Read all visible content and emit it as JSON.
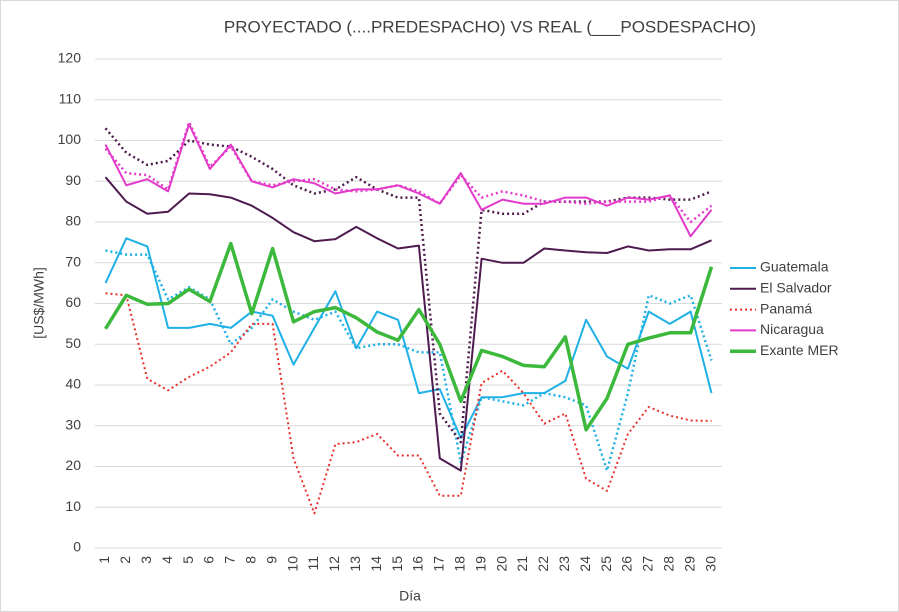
{
  "chart_data": {
    "type": "line",
    "title": "PROYECTADO (....PREDESPACHO) VS REAL (___POSDESPACHO)",
    "x_label": "Día",
    "y_label": "[US$/MWh]",
    "categories": [
      "1",
      "2",
      "3",
      "4",
      "5",
      "6",
      "7",
      "8",
      "9",
      "10",
      "11",
      "12",
      "13",
      "14",
      "15",
      "16",
      "17",
      "18",
      "19",
      "20",
      "21",
      "22",
      "23",
      "24",
      "25",
      "26",
      "27",
      "28",
      "29",
      "30"
    ],
    "ylim": [
      0,
      120
    ],
    "yticks": [
      0,
      10,
      20,
      30,
      40,
      50,
      60,
      70,
      80,
      90,
      100,
      110,
      120
    ],
    "grid": true,
    "legend": "right",
    "series": [
      {
        "name": "Guatemala",
        "color": "#1fb0e6",
        "values": [
          65,
          76,
          74,
          54,
          54,
          55,
          54,
          58,
          57,
          45,
          54,
          63,
          49,
          58,
          56,
          38,
          39,
          27,
          37,
          37,
          38,
          38,
          41,
          56,
          47,
          44,
          58,
          55,
          58,
          38
        ],
        "projected_values": [
          73,
          72,
          72,
          61,
          64,
          61,
          50,
          54,
          61,
          58,
          56,
          58,
          49,
          50,
          50,
          48,
          48,
          21,
          37,
          36,
          35,
          38,
          37,
          35,
          19,
          38,
          62,
          60,
          62,
          46
        ]
      },
      {
        "name": "El Salvador",
        "color": "#4e1a4f",
        "values": [
          91,
          85,
          82,
          82.5,
          87,
          86.8,
          86,
          84,
          81,
          77.5,
          75.3,
          75.8,
          78.8,
          76,
          73.5,
          74.2,
          22,
          19,
          71,
          70,
          70,
          73.5,
          73,
          72.6,
          72.4,
          74,
          73,
          73.3,
          73.3,
          75.5
        ],
        "projected_values": [
          103,
          97,
          94,
          95,
          100,
          99,
          98.5,
          96,
          93,
          89,
          87,
          88,
          91,
          88,
          86,
          86,
          33,
          26,
          83,
          82,
          82,
          85,
          85,
          85,
          85,
          86,
          86,
          85.5,
          85.5,
          87.5
        ]
      },
      {
        "name": "Panamá",
        "color": "#e8302a",
        "dash": "dotted",
        "values": [
          62.5,
          62,
          41.5,
          38.7,
          42,
          44.5,
          48,
          55,
          55,
          22,
          8.5,
          25.5,
          26,
          28,
          22.7,
          22.7,
          12.8,
          12.8,
          40.5,
          43.5,
          38,
          30.5,
          33,
          17,
          14,
          28,
          34.6,
          32.5,
          31.3,
          31.2
        ]
      },
      {
        "name": "Nicaragua",
        "color": "#e43aca",
        "values": [
          99,
          89,
          90.5,
          87.5,
          104,
          93,
          99,
          90,
          88.5,
          90.5,
          89.5,
          87,
          88,
          88,
          89,
          87,
          84.5,
          92,
          83,
          85.5,
          84.5,
          84.5,
          86,
          86,
          84,
          86,
          85.5,
          86.5,
          76.5,
          83
        ],
        "projected_values": [
          98,
          92,
          91.5,
          88,
          104.5,
          93.5,
          98.5,
          90,
          89,
          90,
          90.5,
          88,
          87.5,
          88,
          89,
          87.5,
          84.5,
          91.5,
          86,
          87.5,
          86.5,
          85,
          85,
          84.5,
          85,
          85,
          85,
          86.5,
          80,
          84
        ]
      },
      {
        "name": "Exante MER",
        "color": "#3cb93c",
        "width": 3.5,
        "values": [
          53.8,
          62,
          59.8,
          60,
          63.5,
          60.5,
          74.7,
          57.5,
          73.5,
          55.5,
          58,
          59,
          56.5,
          53,
          51,
          58.5,
          50,
          36,
          48.5,
          47,
          44.8,
          44.5,
          51.8,
          29,
          36.7,
          50,
          51.5,
          52.8,
          52.8,
          69
        ]
      }
    ]
  }
}
